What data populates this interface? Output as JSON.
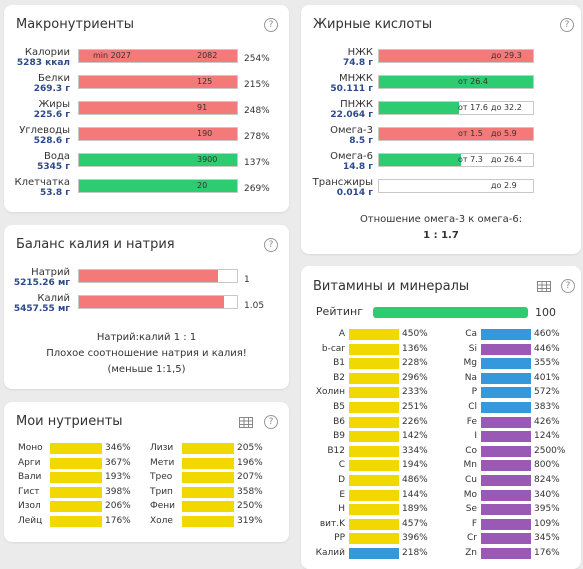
{
  "macros": {
    "title": "Макронутриенты",
    "rows": [
      {
        "name": "Калории",
        "amount": "5283 ккал",
        "bar_left": "min 2027",
        "bar_value": "2082",
        "percent": "254%",
        "color": "red",
        "fill": 1.0
      },
      {
        "name": "Белки",
        "amount": "269.3 г",
        "bar_left": "",
        "bar_value": "125",
        "percent": "215%",
        "color": "red",
        "fill": 1.0
      },
      {
        "name": "Жиры",
        "amount": "225.6 г",
        "bar_left": "",
        "bar_value": "91",
        "percent": "248%",
        "color": "red",
        "fill": 1.0
      },
      {
        "name": "Углеводы",
        "amount": "528.6 г",
        "bar_left": "",
        "bar_value": "190",
        "percent": "278%",
        "color": "red",
        "fill": 1.0
      },
      {
        "name": "Вода",
        "amount": "5345 г",
        "bar_left": "",
        "bar_value": "3900",
        "percent": "137%",
        "color": "green",
        "fill": 1.0
      },
      {
        "name": "Клетчатка",
        "amount": "53.8 г",
        "bar_left": "",
        "bar_value": "20",
        "percent": "269%",
        "color": "green",
        "fill": 1.0
      }
    ]
  },
  "fatty": {
    "title": "Жирные кислоты",
    "rows": [
      {
        "name": "НЖК",
        "amount": "74.8 г",
        "from": "",
        "to": "до 29.3",
        "color": "red",
        "fill": 1.0
      },
      {
        "name": "МНЖК",
        "amount": "50.111 г",
        "from": "от 26.4",
        "to": "",
        "color": "green",
        "fill": 1.0
      },
      {
        "name": "ПНЖК",
        "amount": "22.064 г",
        "from": "от 17.6",
        "to": "до 32.2",
        "color": "green",
        "fill": 0.52
      },
      {
        "name": "Омега-3",
        "amount": "8.5 г",
        "from": "от 1.5",
        "to": "до 5.9",
        "color": "red",
        "fill": 1.0
      },
      {
        "name": "Омега-6",
        "amount": "14.8 г",
        "from": "от 7.3",
        "to": "до 26.4",
        "color": "green",
        "fill": 0.53
      },
      {
        "name": "Трансжиры",
        "amount": "0.014 г",
        "from": "",
        "to": "до 2.9",
        "color": "green",
        "fill": 0.0
      }
    ],
    "ratio_label": "Отношение омега-3 к омега-6:",
    "ratio_value": "1 : 1.7"
  },
  "balance": {
    "title": "Баланс калия и натрия",
    "rows": [
      {
        "name": "Натрий",
        "amount": "5215.26 мг",
        "value": "1",
        "color": "red",
        "fill": 0.88
      },
      {
        "name": "Калий",
        "amount": "5457.55 мг",
        "value": "1.05",
        "color": "red",
        "fill": 0.92
      }
    ],
    "ratio": "Натрий:калий 1 : 1",
    "note": "Плохое соотношение натрия и калия! (меньше 1:1,5)"
  },
  "my": {
    "title": "Мои нутриенты",
    "left": [
      {
        "name": "Моно",
        "pct": "346%"
      },
      {
        "name": "Арги",
        "pct": "367%"
      },
      {
        "name": "Вали",
        "pct": "193%"
      },
      {
        "name": "Гист",
        "pct": "398%"
      },
      {
        "name": "Изол",
        "pct": "206%"
      },
      {
        "name": "Лейц",
        "pct": "176%"
      }
    ],
    "right": [
      {
        "name": "Лизи",
        "pct": "205%"
      },
      {
        "name": "Мети",
        "pct": "196%"
      },
      {
        "name": "Трео",
        "pct": "207%"
      },
      {
        "name": "Трип",
        "pct": "358%"
      },
      {
        "name": "Фени",
        "pct": "250%"
      },
      {
        "name": "Холе",
        "pct": "319%"
      }
    ]
  },
  "vitamins": {
    "title": "Витамины и минералы",
    "rating_label": "Рейтинг",
    "rating_value": "100",
    "left": [
      {
        "name": "A",
        "pct": "450%",
        "color": "yellow"
      },
      {
        "name": "b-car",
        "pct": "136%",
        "color": "yellow"
      },
      {
        "name": "B1",
        "pct": "228%",
        "color": "yellow"
      },
      {
        "name": "B2",
        "pct": "296%",
        "color": "yellow"
      },
      {
        "name": "Холин",
        "pct": "233%",
        "color": "yellow"
      },
      {
        "name": "B5",
        "pct": "251%",
        "color": "yellow"
      },
      {
        "name": "B6",
        "pct": "226%",
        "color": "yellow"
      },
      {
        "name": "B9",
        "pct": "142%",
        "color": "yellow"
      },
      {
        "name": "B12",
        "pct": "334%",
        "color": "yellow"
      },
      {
        "name": "C",
        "pct": "194%",
        "color": "yellow"
      },
      {
        "name": "D",
        "pct": "486%",
        "color": "yellow"
      },
      {
        "name": "E",
        "pct": "144%",
        "color": "yellow"
      },
      {
        "name": "H",
        "pct": "189%",
        "color": "yellow"
      },
      {
        "name": "вит.K",
        "pct": "457%",
        "color": "yellow"
      },
      {
        "name": "PP",
        "pct": "396%",
        "color": "yellow"
      },
      {
        "name": "Калий",
        "pct": "218%",
        "color": "blue"
      }
    ],
    "right": [
      {
        "name": "Ca",
        "pct": "460%",
        "color": "blue"
      },
      {
        "name": "Si",
        "pct": "446%",
        "color": "purple"
      },
      {
        "name": "Mg",
        "pct": "355%",
        "color": "blue"
      },
      {
        "name": "Na",
        "pct": "401%",
        "color": "blue"
      },
      {
        "name": "P",
        "pct": "572%",
        "color": "blue"
      },
      {
        "name": "Cl",
        "pct": "383%",
        "color": "blue"
      },
      {
        "name": "Fe",
        "pct": "426%",
        "color": "purple"
      },
      {
        "name": "I",
        "pct": "124%",
        "color": "purple"
      },
      {
        "name": "Co",
        "pct": "2500%",
        "color": "purple"
      },
      {
        "name": "Mn",
        "pct": "800%",
        "color": "purple"
      },
      {
        "name": "Cu",
        "pct": "824%",
        "color": "purple"
      },
      {
        "name": "Mo",
        "pct": "340%",
        "color": "purple"
      },
      {
        "name": "Se",
        "pct": "395%",
        "color": "purple"
      },
      {
        "name": "F",
        "pct": "109%",
        "color": "purple"
      },
      {
        "name": "Cr",
        "pct": "345%",
        "color": "purple"
      },
      {
        "name": "Zn",
        "pct": "176%",
        "color": "purple"
      }
    ]
  },
  "icons": {
    "help": "?"
  }
}
